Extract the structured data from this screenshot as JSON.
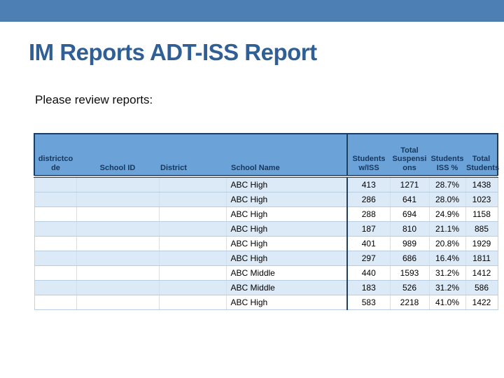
{
  "slide": {
    "title": "IM Reports ADT-ISS Report",
    "subtitle": "Please review reports:"
  },
  "theme": {
    "top_band_color": "#4d7fb5",
    "title_color": "#2f5f94",
    "table_header_bg": "#6ba3d9",
    "table_header_text": "#17365d",
    "row_tint_color": "#dce9f6",
    "dark_border_color": "#1e3c5f"
  },
  "table": {
    "columns": [
      {
        "key": "districtcode",
        "label": "districtcode",
        "lines": [
          "districtco",
          "de"
        ]
      },
      {
        "key": "school_id",
        "label": "School ID",
        "lines": [
          "School ID"
        ]
      },
      {
        "key": "district",
        "label": "District",
        "lines": [
          "District"
        ]
      },
      {
        "key": "school_name",
        "label": "School Name",
        "lines": [
          "School Name"
        ]
      },
      {
        "key": "students_w_iss",
        "label": "Students w/ISS",
        "lines": [
          "Students",
          "w/ISS"
        ]
      },
      {
        "key": "total_suspensions",
        "label": "Total Suspensions",
        "lines": [
          "Total",
          "Suspensi",
          "ons"
        ]
      },
      {
        "key": "students_iss_pct",
        "label": "Students ISS %",
        "lines": [
          "Students",
          "ISS %"
        ]
      },
      {
        "key": "total_students",
        "label": "Total Students",
        "lines": [
          "Total",
          "Students"
        ]
      }
    ],
    "rows": [
      {
        "districtcode": "",
        "school_id": "",
        "district": "",
        "school_name": "ABC High",
        "students_w_iss": "413",
        "total_suspensions": "1271",
        "students_iss_pct": "28.7%",
        "total_students": "1438"
      },
      {
        "districtcode": "",
        "school_id": "",
        "district": "",
        "school_name": "ABC High",
        "students_w_iss": "286",
        "total_suspensions": "641",
        "students_iss_pct": "28.0%",
        "total_students": "1023"
      },
      {
        "districtcode": "",
        "school_id": "",
        "district": "",
        "school_name": "ABC High",
        "students_w_iss": "288",
        "total_suspensions": "694",
        "students_iss_pct": "24.9%",
        "total_students": "1158"
      },
      {
        "districtcode": "",
        "school_id": "",
        "district": "",
        "school_name": "ABC High",
        "students_w_iss": "187",
        "total_suspensions": "810",
        "students_iss_pct": "21.1%",
        "total_students": "885"
      },
      {
        "districtcode": "",
        "school_id": "",
        "district": "",
        "school_name": "ABC High",
        "students_w_iss": "401",
        "total_suspensions": "989",
        "students_iss_pct": "20.8%",
        "total_students": "1929"
      },
      {
        "districtcode": "",
        "school_id": "",
        "district": "",
        "school_name": "ABC High",
        "students_w_iss": "297",
        "total_suspensions": "686",
        "students_iss_pct": "16.4%",
        "total_students": "1811"
      },
      {
        "districtcode": "",
        "school_id": "",
        "district": "",
        "school_name": "ABC Middle",
        "students_w_iss": "440",
        "total_suspensions": "1593",
        "students_iss_pct": "31.2%",
        "total_students": "1412"
      },
      {
        "districtcode": "",
        "school_id": "",
        "district": "",
        "school_name": "ABC Middle",
        "students_w_iss": "183",
        "total_suspensions": "526",
        "students_iss_pct": "31.2%",
        "total_students": "586"
      },
      {
        "districtcode": "",
        "school_id": "",
        "district": "",
        "school_name": "ABC High",
        "students_w_iss": "583",
        "total_suspensions": "2218",
        "students_iss_pct": "41.0%",
        "total_students": "1422"
      }
    ]
  }
}
